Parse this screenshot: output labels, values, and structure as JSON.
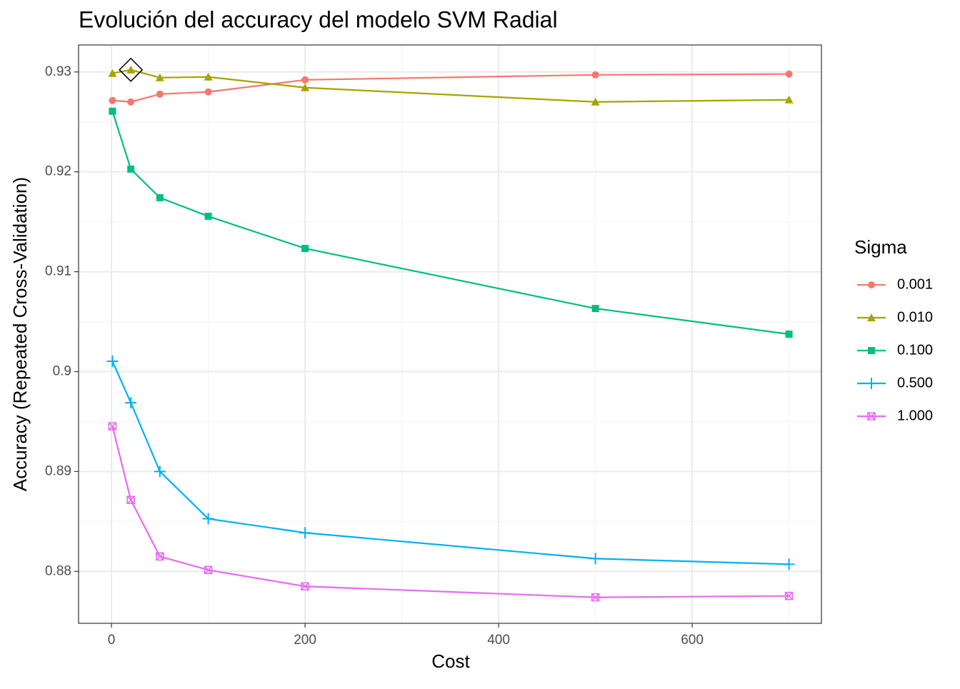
{
  "chart_data": {
    "type": "line",
    "title": "Evolución del accuracy del modelo SVM Radial",
    "x_label": "Cost",
    "y_label": "Accuracy (Repeated Cross-Validation)",
    "legend_title": "Sigma",
    "legend_position": "right",
    "grid": true,
    "x": [
      1,
      20,
      50,
      100,
      200,
      500,
      700
    ],
    "xlim": [
      -34,
      733.5
    ],
    "ylim": [
      0.8748,
      0.9327
    ],
    "xticks": [
      0,
      200,
      400,
      600
    ],
    "yticks": [
      0.88,
      0.89,
      0.9,
      0.91,
      0.92,
      0.93
    ],
    "series": [
      {
        "name": "0.001",
        "color": "#F8766D",
        "shape": "circle",
        "values": [
          0.92714,
          0.927,
          0.92778,
          0.928,
          0.92921,
          0.92971,
          0.92979
        ]
      },
      {
        "name": "0.010",
        "color": "#A3A500",
        "shape": "triangle",
        "values": [
          0.92986,
          0.93021,
          0.92943,
          0.9295,
          0.92843,
          0.927,
          0.92721
        ]
      },
      {
        "name": "0.100",
        "color": "#00BF7D",
        "shape": "square",
        "values": [
          0.92607,
          0.92027,
          0.91741,
          0.91555,
          0.91233,
          0.90632,
          0.90375
        ]
      },
      {
        "name": "0.500",
        "color": "#00B0F6",
        "shape": "plus",
        "values": [
          0.90103,
          0.89688,
          0.89,
          0.88527,
          0.88386,
          0.88128,
          0.88071
        ]
      },
      {
        "name": "1.000",
        "color": "#E76BF3",
        "shape": "boxx",
        "values": [
          0.89452,
          0.88715,
          0.8815,
          0.88014,
          0.8785,
          0.8774,
          0.87754
        ]
      }
    ],
    "highlight": {
      "series": 1,
      "index": 1
    }
  }
}
